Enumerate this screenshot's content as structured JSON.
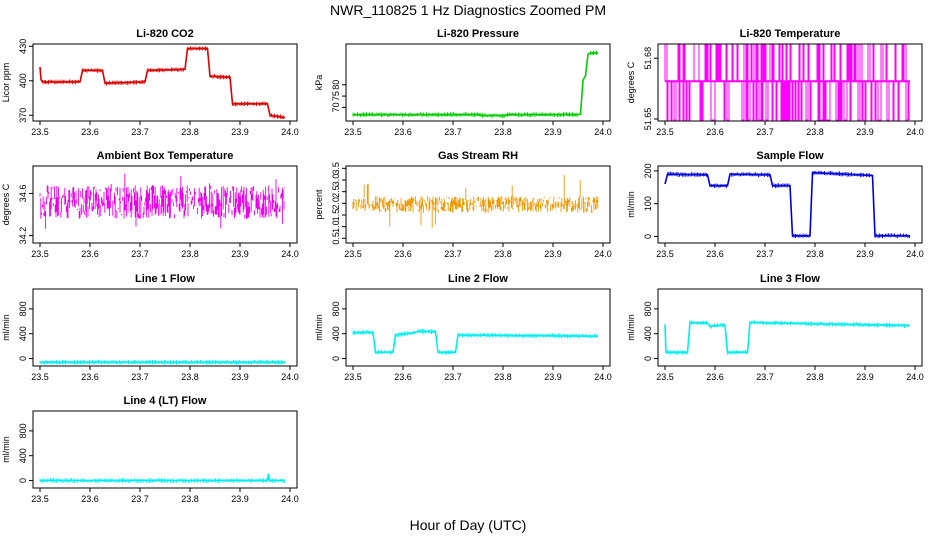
{
  "title": "NWR_110825  1 Hz Diagnostics Zoomed PM",
  "x_axis_title": "Hour of Day (UTC)",
  "chart_data": [
    {
      "type": "line",
      "title": "Li-820 CO2",
      "ylabel": "Licor ppm",
      "xlim": [
        23.5,
        24.0
      ],
      "ylim": [
        365,
        432
      ],
      "yticks": [
        370,
        400,
        430
      ],
      "xticks": [
        23.5,
        23.6,
        23.7,
        23.8,
        23.9,
        24.0
      ],
      "color": "#dd0000",
      "series": [
        {
          "x": [
            23.5,
            23.502,
            23.505,
            23.58,
            23.585,
            23.625,
            23.63,
            23.71,
            23.715,
            23.79,
            23.795,
            23.835,
            23.84,
            23.88,
            23.885,
            23.955,
            23.96,
            23.99
          ],
          "y": [
            412,
            401,
            399,
            399,
            409,
            409,
            398,
            399,
            409,
            410,
            428,
            428,
            404,
            403,
            380,
            380,
            370,
            368
          ]
        }
      ]
    },
    {
      "type": "line",
      "title": "Li-820 Pressure",
      "ylabel": "kPa",
      "xlim": [
        23.5,
        24.0
      ],
      "ylim": [
        64,
        98
      ],
      "yticks": [
        70,
        75,
        80
      ],
      "xticks": [
        23.5,
        23.6,
        23.7,
        23.8,
        23.9,
        24.0
      ],
      "color": "#00cc00",
      "series": [
        {
          "x": [
            23.5,
            23.75,
            23.76,
            23.8,
            23.81,
            23.95,
            23.955,
            23.96,
            23.965,
            23.97,
            23.975,
            23.99
          ],
          "y": [
            66.8,
            66.8,
            66.4,
            66.4,
            66.8,
            66.8,
            67,
            82,
            84,
            93.5,
            94,
            94
          ]
        }
      ]
    },
    {
      "type": "line",
      "title": "Li-820 Temperature",
      "ylabel": "degrees C",
      "xlim": [
        23.5,
        24.0
      ],
      "ylim": [
        51.649,
        51.687
      ],
      "yticks": [
        51.65,
        51.68
      ],
      "ytick_labels": [
        "51.65",
        "51.68"
      ],
      "xticks": [
        23.5,
        23.6,
        23.7,
        23.8,
        23.9,
        24.0
      ],
      "color": "#ff00ff",
      "pattern": "quantized-noise",
      "levels": [
        51.6495,
        51.6686,
        51.6875
      ],
      "density": 0.55
    },
    {
      "type": "line",
      "title": "Ambient Box Temperature",
      "ylabel": "degrees C",
      "xlim": [
        23.5,
        24.0
      ],
      "ylim": [
        34.13,
        34.86
      ],
      "yticks": [
        34.2,
        34.6
      ],
      "ytick_labels": [
        "34.2",
        "34.6"
      ],
      "xticks": [
        23.5,
        23.6,
        23.7,
        23.8,
        23.9,
        24.0
      ],
      "color": "#ee00ee",
      "pattern": "noise",
      "center": 34.52,
      "spread": 0.16,
      "spike": 0.27
    },
    {
      "type": "line",
      "title": "Gas Stream RH",
      "ylabel": "percent",
      "xlim": [
        23.5,
        24.0
      ],
      "ylim": [
        0.3,
        3.6
      ],
      "yticks": [
        0.5,
        1.0,
        1.5,
        2.0,
        2.5,
        3.0,
        3.5
      ],
      "ytick_labels": [
        "0.5",
        "1.0",
        "1.5",
        "2.0",
        "2.5",
        "3.0",
        "3.5"
      ],
      "xticks": [
        23.5,
        23.6,
        23.7,
        23.8,
        23.9,
        24.0
      ],
      "color": "#ee9900",
      "pattern": "noise",
      "center": 1.95,
      "spread": 0.35,
      "spike": 1.3
    },
    {
      "type": "line",
      "title": "Sample Flow",
      "ylabel": "ml/min",
      "xlim": [
        23.5,
        24.0
      ],
      "ylim": [
        -20,
        215
      ],
      "yticks": [
        0,
        100,
        200
      ],
      "xticks": [
        23.5,
        23.6,
        23.7,
        23.8,
        23.9,
        24.0
      ],
      "color": "#0000dd",
      "series": [
        {
          "x": [
            23.5,
            23.505,
            23.585,
            23.59,
            23.625,
            23.63,
            23.71,
            23.715,
            23.75,
            23.755,
            23.79,
            23.795,
            23.915,
            23.92,
            23.99
          ],
          "y": [
            160,
            190,
            188,
            155,
            155,
            190,
            188,
            155,
            155,
            2,
            2,
            195,
            186,
            2,
            2
          ]
        }
      ]
    },
    {
      "type": "line",
      "title": "Line 1 Flow",
      "ylabel": "ml/min",
      "xlim": [
        23.5,
        24.0
      ],
      "ylim": [
        -120,
        1120
      ],
      "yticks": [
        0,
        400,
        800
      ],
      "xticks": [
        23.5,
        23.6,
        23.7,
        23.8,
        23.9,
        24.0
      ],
      "color": "#00eeee",
      "series": [
        {
          "x": [
            23.5,
            23.99
          ],
          "y": [
            -60,
            -60
          ]
        }
      ]
    },
    {
      "type": "line",
      "title": "Line 2 Flow",
      "ylabel": "ml/min",
      "xlim": [
        23.5,
        24.0
      ],
      "ylim": [
        -120,
        1120
      ],
      "yticks": [
        0,
        400,
        800
      ],
      "xticks": [
        23.5,
        23.6,
        23.7,
        23.8,
        23.9,
        24.0
      ],
      "color": "#00eeee",
      "series": [
        {
          "x": [
            23.5,
            23.54,
            23.545,
            23.58,
            23.585,
            23.625,
            23.63,
            23.665,
            23.67,
            23.705,
            23.71,
            23.99
          ],
          "y": [
            420,
            420,
            100,
            100,
            380,
            420,
            440,
            430,
            100,
            100,
            380,
            360
          ]
        }
      ]
    },
    {
      "type": "line",
      "title": "Line 3 Flow",
      "ylabel": "ml/min",
      "xlim": [
        23.5,
        24.0
      ],
      "ylim": [
        -120,
        1120
      ],
      "yticks": [
        0,
        400,
        800
      ],
      "xticks": [
        23.5,
        23.6,
        23.7,
        23.8,
        23.9,
        24.0
      ],
      "color": "#00eeee",
      "series": [
        {
          "x": [
            23.5,
            23.502,
            23.545,
            23.55,
            23.585,
            23.59,
            23.62,
            23.625,
            23.665,
            23.67,
            23.99
          ],
          "y": [
            550,
            100,
            100,
            580,
            570,
            520,
            540,
            100,
            100,
            580,
            530
          ]
        }
      ]
    },
    {
      "type": "line",
      "title": "Line 4 (LT) Flow",
      "ylabel": "ml/min",
      "xlim": [
        23.5,
        24.0
      ],
      "ylim": [
        -120,
        1120
      ],
      "yticks": [
        0,
        400,
        800
      ],
      "xticks": [
        23.5,
        23.6,
        23.7,
        23.8,
        23.9,
        24.0
      ],
      "color": "#00eeee",
      "series": [
        {
          "x": [
            23.5,
            23.955,
            23.957,
            23.959,
            23.99
          ],
          "y": [
            0,
            0,
            110,
            0,
            0
          ]
        }
      ]
    }
  ]
}
